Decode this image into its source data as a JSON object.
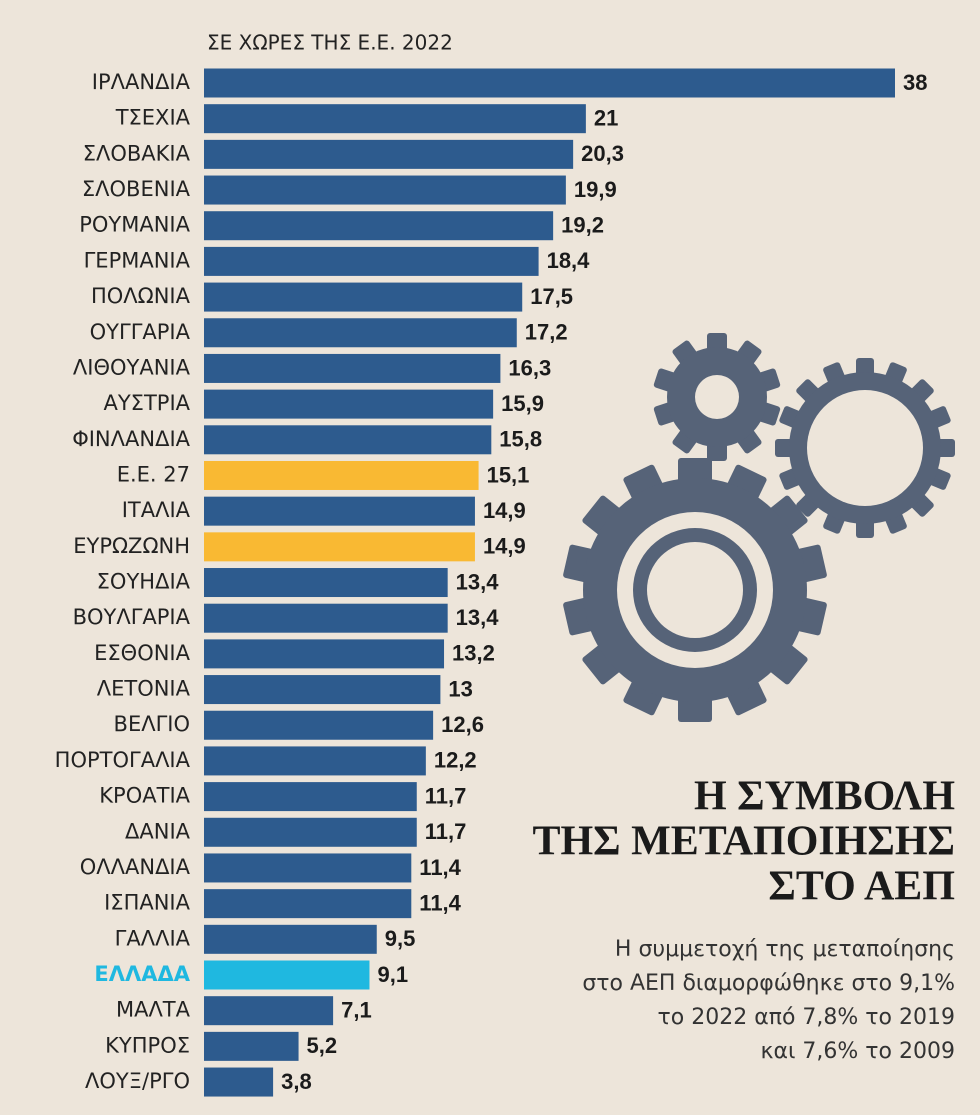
{
  "chart_data": {
    "type": "bar",
    "orientation": "horizontal",
    "subtitle": "ΣΕ ΧΩΡΕΣ ΤΗΣ Ε.Ε. 2022",
    "title": [
      "Η ΣΥΜΒΟΛΗ",
      "ΤΗΣ ΜΕΤΑΠΟΙΗΣΗΣ",
      "ΣΤΟ ΑΕΠ"
    ],
    "note": [
      "Η συμμετοχή της μεταποίησης",
      "στο ΑΕΠ διαμορφώθηκε στο 9,1%",
      "το 2022 από 7,8% το 2019",
      "και 7,6% το 2009"
    ],
    "categories": [
      "ΙΡΛΑΝΔΙΑ",
      "ΤΣΕΧΙΑ",
      "ΣΛΟΒΑΚΙΑ",
      "ΣΛΟΒΕΝΙΑ",
      "ΡΟΥΜΑΝΙΑ",
      "ΓΕΡΜΑΝΙΑ",
      "ΠΟΛΩΝΙΑ",
      "ΟΥΓΓΑΡΙΑ",
      "ΛΙΘΟΥΑΝΙΑ",
      "ΑΥΣΤΡΙΑ",
      "ΦΙΝΛΑΝΔΙΑ",
      "Ε.Ε. 27",
      "ΙΤΑΛΙΑ",
      "ΕΥΡΩΖΩΝΗ",
      "ΣΟΥΗΔΙΑ",
      "ΒΟΥΛΓΑΡΙΑ",
      "ΕΣΘΟΝΙΑ",
      "ΛΕΤΟΝΙΑ",
      "ΒΕΛΓΙΟ",
      "ΠΟΡΤΟΓΑΛΙΑ",
      "ΚΡΟΑΤΙΑ",
      "ΔΑΝΙΑ",
      "ΟΛΛΑΝΔΙΑ",
      "ΙΣΠΑΝΙΑ",
      "ΓΑΛΛΙΑ",
      "ΕΛΛΑΔΑ",
      "ΜΑΛΤΑ",
      "ΚΥΠΡΟΣ",
      "ΛΟΥΞ/ΡΓΟ"
    ],
    "values": [
      38,
      21,
      20.3,
      19.9,
      19.2,
      18.4,
      17.5,
      17.2,
      16.3,
      15.9,
      15.8,
      15.1,
      14.9,
      14.9,
      13.4,
      13.4,
      13.2,
      13,
      12.6,
      12.2,
      11.7,
      11.7,
      11.4,
      11.4,
      9.5,
      9.1,
      7.1,
      5.2,
      3.8
    ],
    "value_labels": [
      "38",
      "21",
      "20,3",
      "19,9",
      "19,2",
      "18,4",
      "17,5",
      "17,2",
      "16,3",
      "15,9",
      "15,8",
      "15,1",
      "14,9",
      "14,9",
      "13,4",
      "13,4",
      "13,2",
      "13",
      "12,6",
      "12,2",
      "11,7",
      "11,7",
      "11,4",
      "11,4",
      "9,5",
      "9,1",
      "7,1",
      "5,2",
      "3,8"
    ],
    "colors": [
      "#2d5b8e",
      "#2d5b8e",
      "#2d5b8e",
      "#2d5b8e",
      "#2d5b8e",
      "#2d5b8e",
      "#2d5b8e",
      "#2d5b8e",
      "#2d5b8e",
      "#2d5b8e",
      "#2d5b8e",
      "#f9b933",
      "#2d5b8e",
      "#f9b933",
      "#2d5b8e",
      "#2d5b8e",
      "#2d5b8e",
      "#2d5b8e",
      "#2d5b8e",
      "#2d5b8e",
      "#2d5b8e",
      "#2d5b8e",
      "#2d5b8e",
      "#2d5b8e",
      "#2d5b8e",
      "#1fb8e0",
      "#2d5b8e",
      "#2d5b8e",
      "#2d5b8e"
    ],
    "label_colors": [
      "#222",
      "#222",
      "#222",
      "#222",
      "#222",
      "#222",
      "#222",
      "#222",
      "#222",
      "#222",
      "#222",
      "#222",
      "#222",
      "#222",
      "#222",
      "#222",
      "#222",
      "#222",
      "#222",
      "#222",
      "#222",
      "#222",
      "#222",
      "#222",
      "#222",
      "#1fb8e0",
      "#222",
      "#222",
      "#222"
    ]
  }
}
